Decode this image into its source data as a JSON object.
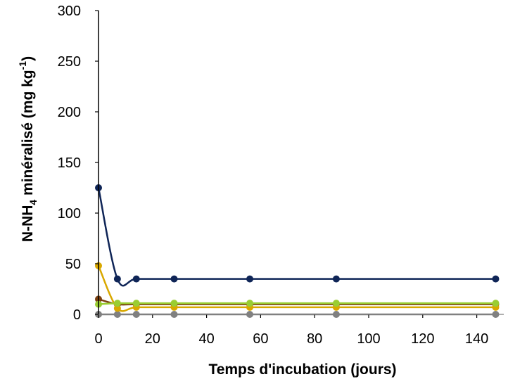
{
  "chart_data": {
    "type": "line",
    "xlabel": "Temps d'incubation (jours)",
    "ylabel": {
      "prefix": "N-NH",
      "sub": "4",
      "middle": " minéralisé (mg kg",
      "sup": "-1",
      "suffix": ")"
    },
    "xlim": [
      0,
      150
    ],
    "ylim": [
      0,
      300
    ],
    "x_ticks": [
      0,
      20,
      40,
      60,
      80,
      100,
      120,
      140
    ],
    "y_ticks": [
      0,
      50,
      100,
      150,
      200,
      250,
      300
    ],
    "x": [
      0,
      7,
      14,
      28,
      56,
      88,
      147
    ],
    "smooth": true,
    "series": [
      {
        "color": "#808080",
        "values": [
          0,
          0,
          0,
          0,
          0,
          0,
          0
        ]
      },
      {
        "color": "#7B3F10",
        "values": [
          15,
          10,
          10,
          10,
          10,
          10,
          10
        ]
      },
      {
        "color": "#D9A800",
        "values": [
          48,
          6,
          7,
          7,
          7,
          7,
          7
        ]
      },
      {
        "color": "#9ACD32",
        "values": [
          10,
          11,
          11,
          11,
          11,
          11,
          11
        ]
      },
      {
        "color": "#0F2557",
        "values": [
          125,
          35,
          35,
          35,
          35,
          35,
          35
        ]
      }
    ]
  }
}
